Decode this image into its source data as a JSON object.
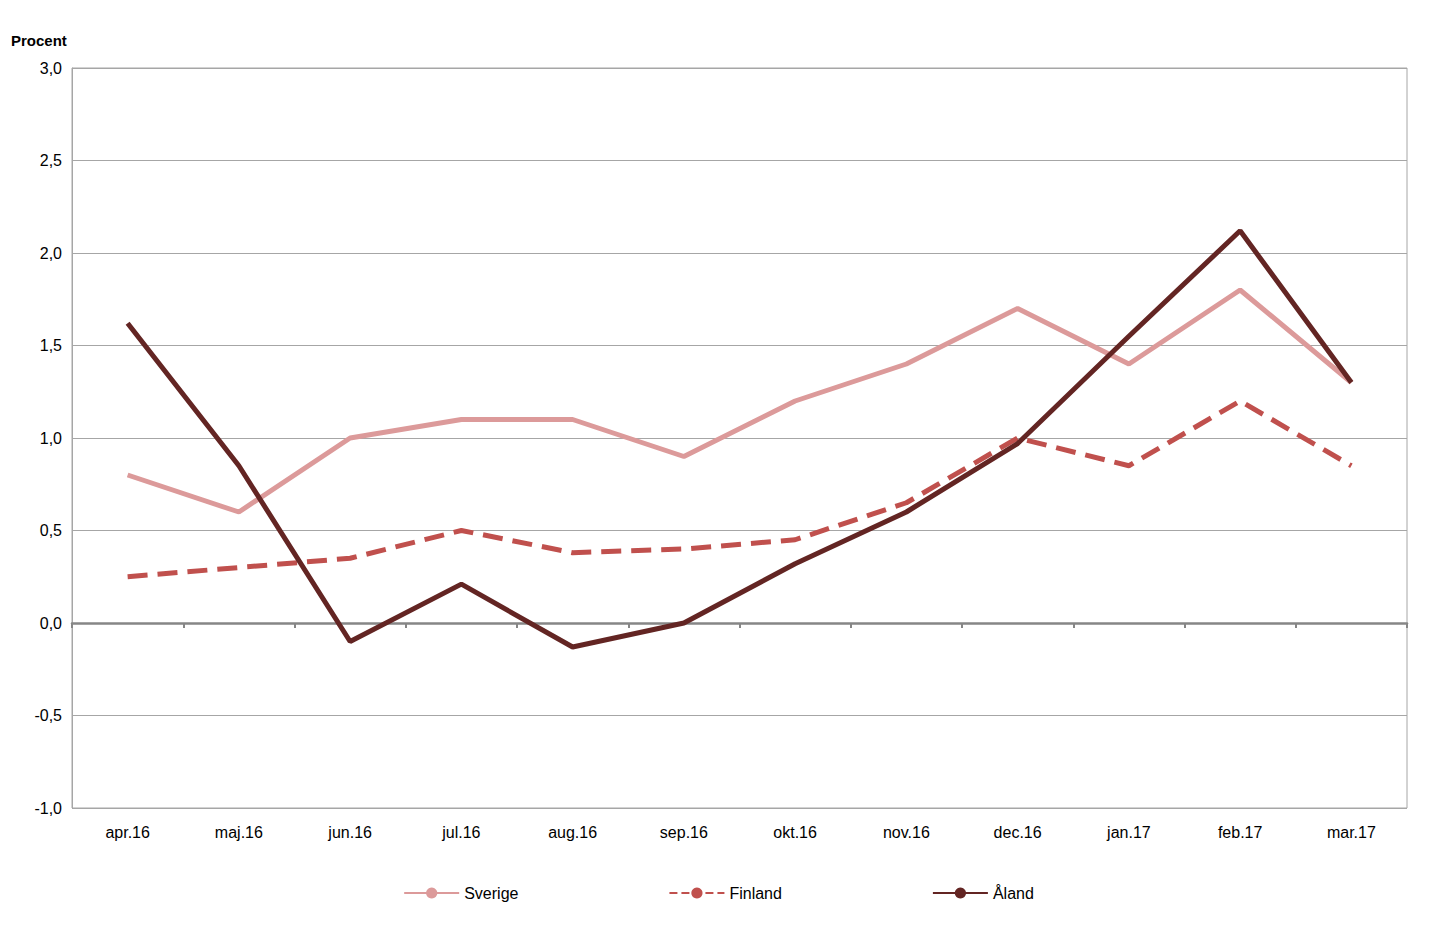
{
  "chart_data": {
    "type": "line",
    "y_label": "Procent",
    "categories": [
      "apr.16",
      "maj.16",
      "jun.16",
      "jul.16",
      "aug.16",
      "sep.16",
      "okt.16",
      "nov.16",
      "dec.16",
      "jan.17",
      "feb.17",
      "mar.17"
    ],
    "series": [
      {
        "name": "Sverige",
        "color": "#dc9a9a",
        "line_style": "solid",
        "values": [
          0.8,
          0.6,
          1.0,
          1.1,
          1.1,
          0.9,
          1.2,
          1.4,
          1.7,
          1.4,
          1.8,
          1.3
        ]
      },
      {
        "name": "Finland",
        "color": "#c0504d",
        "line_style": "dashed",
        "values": [
          0.25,
          0.3,
          0.35,
          0.5,
          0.38,
          0.4,
          0.45,
          0.65,
          1.0,
          0.85,
          1.2,
          0.85
        ]
      },
      {
        "name": "Åland",
        "color": "#632523",
        "line_style": "solid",
        "values": [
          1.62,
          0.85,
          -0.1,
          0.21,
          -0.13,
          0.0,
          0.32,
          0.6,
          0.97,
          1.55,
          2.12,
          1.3
        ]
      }
    ],
    "ylim": [
      -1,
      3
    ],
    "yticks": [
      {
        "value": -1,
        "label": "-1,0"
      },
      {
        "value": -0.5,
        "label": "-0,5"
      },
      {
        "value": 0,
        "label": "0,0"
      },
      {
        "value": 0.5,
        "label": "0,5"
      },
      {
        "value": 1,
        "label": "1,0"
      },
      {
        "value": 1.5,
        "label": "1,5"
      },
      {
        "value": 2,
        "label": "2,0"
      },
      {
        "value": 2.5,
        "label": "2,5"
      },
      {
        "value": 3,
        "label": "3,0"
      }
    ],
    "grid": true,
    "legend": "bottom"
  }
}
